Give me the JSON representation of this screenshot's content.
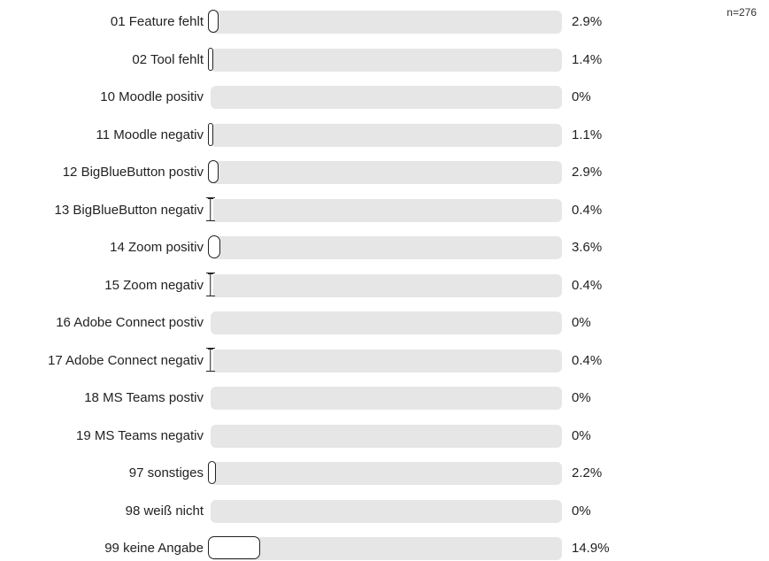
{
  "sample_size_label": "n=276",
  "chart_data": {
    "type": "bar",
    "orientation": "horizontal",
    "xlim": [
      0,
      100
    ],
    "categories": [
      "01 Feature fehlt",
      "02 Tool fehlt",
      "10 Moodle positiv",
      "11 Moodle negativ",
      "12 BigBlueButton postiv",
      "13 BigBlueButton negativ",
      "14 Zoom positiv",
      "15 Zoom negativ",
      "16 Adobe Connect postiv",
      "17 Adobe Connect negativ",
      "18 MS Teams postiv",
      "19 MS Teams negativ",
      "97 sonstiges",
      "98 weiß nicht",
      "99 keine Angabe"
    ],
    "values": [
      2.9,
      1.4,
      0,
      1.1,
      2.9,
      0.4,
      3.6,
      0.4,
      0,
      0.4,
      0,
      0,
      2.2,
      0,
      14.9
    ],
    "value_labels": [
      "2.9%",
      "1.4%",
      "0%",
      "1.1%",
      "2.9%",
      "0.4%",
      "3.6%",
      "0.4%",
      "0%",
      "0.4%",
      "0%",
      "0%",
      "2.2%",
      "0%",
      "14.9%"
    ],
    "unit": "%"
  }
}
